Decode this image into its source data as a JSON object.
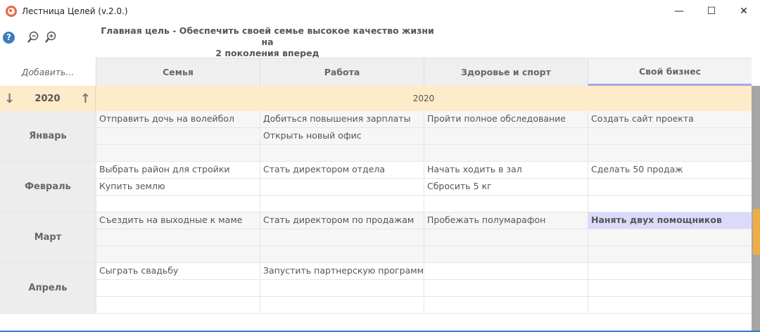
{
  "window": {
    "title": "Лестница Целей (v.2.0.)",
    "minimize": "—",
    "maximize": "☐",
    "close": "✕"
  },
  "toolbar": {
    "help": "?",
    "main_goal_line1": "Главная цель - Обеспечить своей семье высокое качество жизни на",
    "main_goal_line2": "2 поколения вперед"
  },
  "header": {
    "add": "Добавить...",
    "columns": [
      "Семья",
      "Работа",
      "Здоровье и спорт",
      "Свой бизнес"
    ],
    "active_column": "Свой бизнес"
  },
  "year": {
    "label": "2020",
    "banner": "2020",
    "down": "↓",
    "up": "↑"
  },
  "months": [
    {
      "name": "Январь",
      "rows": [
        [
          "Отправить дочь на волейбол",
          "Добиться повышения зарплаты",
          "Пройти полное обследование",
          "Создать сайт проекта"
        ],
        [
          "",
          "Открыть новый офис",
          "",
          ""
        ],
        [
          "",
          "",
          "",
          ""
        ]
      ]
    },
    {
      "name": "Февраль",
      "rows": [
        [
          "Выбрать район для стройки",
          "Стать директором отдела",
          "Начать ходить в зал",
          "Сделать 50 продаж"
        ],
        [
          "Купить землю",
          "",
          "Сбросить 5 кг",
          ""
        ],
        [
          "",
          "",
          "",
          ""
        ]
      ]
    },
    {
      "name": "Март",
      "rows": [
        [
          "Съездить на выходные к маме",
          "Стать директором по продажам",
          "Пробежать полумарафон",
          "Нанять двух помощников"
        ],
        [
          "",
          "",
          "",
          ""
        ],
        [
          "",
          "",
          "",
          ""
        ]
      ]
    },
    {
      "name": "Апрель",
      "rows": [
        [
          "Сыграть свадьбу",
          "Запустить партнерскую программу",
          "",
          ""
        ],
        [
          "",
          "",
          "",
          ""
        ],
        [
          "",
          "",
          "",
          ""
        ]
      ]
    }
  ],
  "highlighted_cell": "Нанять двух помощников",
  "colors": {
    "year_band": "#fdebc9",
    "highlight": "#dcdafb",
    "scroll_thumb": "#f0ad47",
    "active_tab": "#a9a6e6"
  }
}
